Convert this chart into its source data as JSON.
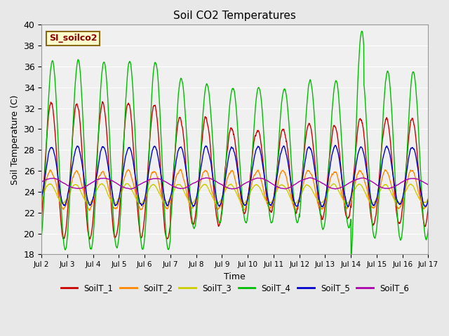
{
  "title": "Soil CO2 Temperatures",
  "xlabel": "Time",
  "ylabel": "Soil Temperature (C)",
  "ylim": [
    18,
    40
  ],
  "xlim_days": [
    2,
    17
  ],
  "annotation_text": "SI_soilco2",
  "annotation_bg": "#ffffcc",
  "annotation_border": "#8B6914",
  "series_colors": {
    "SoilT_1": "#cc0000",
    "SoilT_2": "#ff8800",
    "SoilT_3": "#cccc00",
    "SoilT_4": "#00bb00",
    "SoilT_5": "#0000cc",
    "SoilT_6": "#aa00aa"
  },
  "bg_color": "#e8e8e8",
  "plot_bg": "#f0f0f0",
  "plot_bg2": "#dcdcdc",
  "grid_color": "#ffffff",
  "n_days": 15,
  "points_per_day": 144,
  "seed": 42
}
